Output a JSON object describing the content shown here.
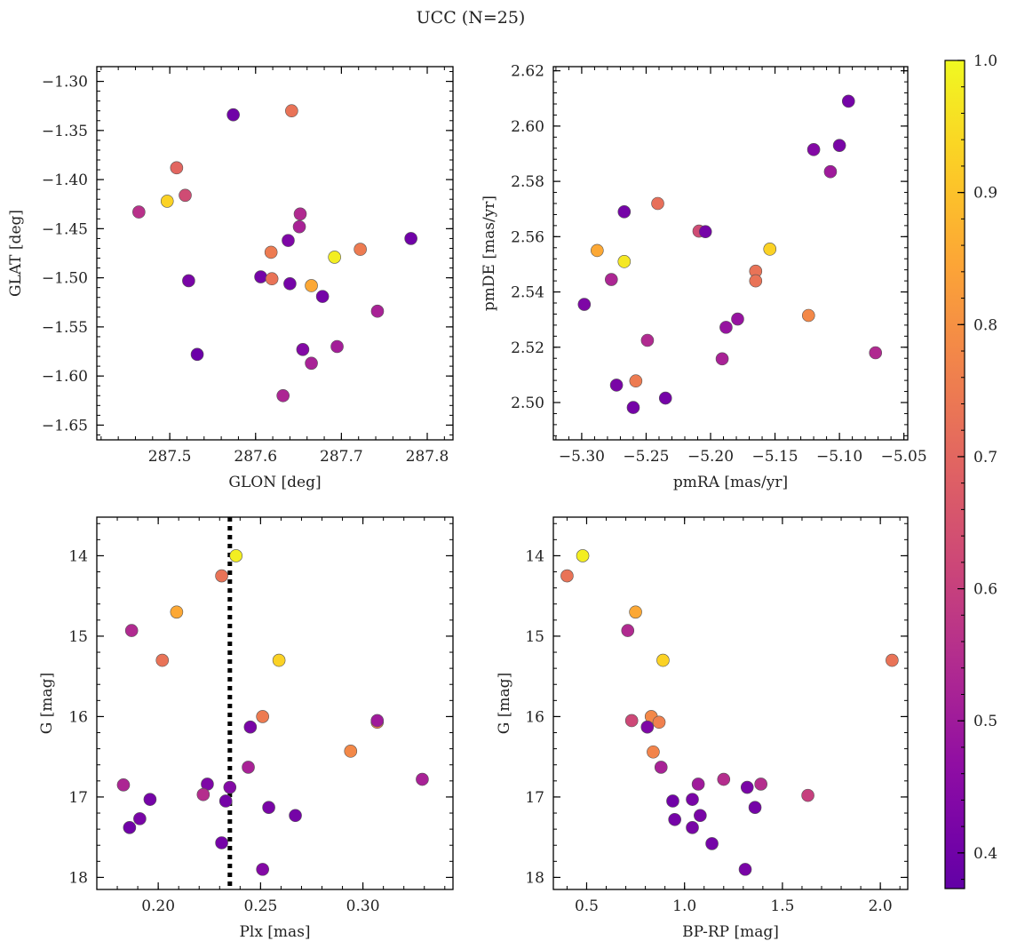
{
  "figure": {
    "title": "UCC (N=25)"
  },
  "colors": {
    "background": "#ffffff",
    "axes": "#000000",
    "marker_edge": "#555555",
    "vline": "#000000"
  },
  "colorbar": {
    "colormap": "plasma",
    "range": [
      0.373,
      1.0
    ],
    "ticks": [
      0.4,
      0.5,
      0.6,
      0.7,
      0.8,
      0.9,
      1.0
    ],
    "tick_labels": [
      "0.4",
      "0.5",
      "0.6",
      "0.7",
      "0.8",
      "0.9",
      "1.0"
    ]
  },
  "chart_data": [
    {
      "id": "glon-glat",
      "type": "scatter",
      "title": "",
      "xlabel": "GLON [deg]",
      "ylabel": "GLAT [deg]",
      "xlim": [
        287.415,
        287.83
      ],
      "ylim": [
        -1.665,
        -1.285
      ],
      "xticks": [
        287.5,
        287.6,
        287.7,
        287.8
      ],
      "xtick_labels": [
        "287.5",
        "287.6",
        "287.7",
        "287.8"
      ],
      "yticks": [
        -1.65,
        -1.6,
        -1.55,
        -1.5,
        -1.45,
        -1.4,
        -1.35,
        -1.3
      ],
      "ytick_labels": [
        "−1.65",
        "−1.60",
        "−1.55",
        "−1.50",
        "−1.45",
        "−1.40",
        "−1.35",
        "−1.30"
      ],
      "yinvert": false,
      "color_values": [
        0.4,
        0.73,
        0.7,
        0.63,
        0.93,
        0.56,
        0.42,
        0.39,
        0.54,
        0.52,
        0.43,
        0.41,
        0.75,
        0.73,
        0.85,
        0.41,
        0.98,
        0.41,
        0.75,
        0.52,
        0.44,
        0.51,
        0.52,
        0.53,
        0.4
      ],
      "x": [
        287.574,
        287.642,
        287.508,
        287.518,
        287.497,
        287.464,
        287.522,
        287.532,
        287.652,
        287.651,
        287.638,
        287.606,
        287.618,
        287.619,
        287.665,
        287.64,
        287.692,
        287.678,
        287.722,
        287.742,
        287.655,
        287.695,
        287.665,
        287.632,
        287.781
      ],
      "y": [
        -1.334,
        -1.33,
        -1.388,
        -1.416,
        -1.422,
        -1.433,
        -1.503,
        -1.578,
        -1.435,
        -1.448,
        -1.462,
        -1.499,
        -1.474,
        -1.501,
        -1.508,
        -1.506,
        -1.479,
        -1.519,
        -1.471,
        -1.534,
        -1.573,
        -1.57,
        -1.587,
        -1.62,
        -1.46
      ]
    },
    {
      "id": "pmra-pmde",
      "type": "scatter",
      "title": "",
      "xlabel": "pmRA [mas/yr]",
      "ylabel": "pmDE [mas/yr]",
      "xlim": [
        -5.322,
        -5.047
      ],
      "ylim": [
        2.4865,
        2.6215
      ],
      "xticks": [
        -5.3,
        -5.25,
        -5.2,
        -5.15,
        -5.1,
        -5.05
      ],
      "xtick_labels": [
        "−5.30",
        "−5.25",
        "−5.20",
        "−5.15",
        "−5.10",
        "−5.05"
      ],
      "yticks": [
        2.5,
        2.52,
        2.54,
        2.56,
        2.58,
        2.6,
        2.62
      ],
      "ytick_labels": [
        "2.50",
        "2.52",
        "2.54",
        "2.56",
        "2.58",
        "2.60",
        "2.62"
      ],
      "yinvert": false,
      "color_values": [
        0.41,
        0.44,
        0.42,
        0.5,
        0.43,
        0.54,
        0.41,
        0.72,
        0.63,
        0.41,
        0.85,
        0.97,
        0.53,
        0.73,
        0.73,
        0.93,
        0.78,
        0.54,
        0.48,
        0.48,
        0.42,
        0.52,
        0.41,
        0.75,
        0.41
      ],
      "x": [
        -5.093,
        -5.12,
        -5.1,
        -5.107,
        -5.298,
        -5.072,
        -5.267,
        -5.241,
        -5.209,
        -5.204,
        -5.288,
        -5.267,
        -5.277,
        -5.165,
        -5.165,
        -5.154,
        -5.124,
        -5.249,
        -5.179,
        -5.188,
        -5.273,
        -5.191,
        -5.235,
        -5.258,
        -5.26
      ],
      "y": [
        2.609,
        2.5915,
        2.593,
        2.5835,
        2.5355,
        2.518,
        2.569,
        2.572,
        2.562,
        2.5618,
        2.555,
        2.551,
        2.5445,
        2.5475,
        2.544,
        2.5555,
        2.5315,
        2.5225,
        2.5302,
        2.5272,
        2.5063,
        2.5158,
        2.5016,
        2.5078,
        2.4982
      ]
    },
    {
      "id": "plx-g",
      "type": "scatter",
      "title": "",
      "xlabel": "Plx [mas]",
      "ylabel": "G [mag]",
      "xlim": [
        0.17,
        0.344
      ],
      "ylim": [
        13.52,
        18.15
      ],
      "xticks": [
        0.2,
        0.25,
        0.3
      ],
      "xtick_labels": [
        "0.20",
        "0.25",
        "0.30"
      ],
      "yticks": [
        14,
        15,
        16,
        17,
        18
      ],
      "ytick_labels": [
        "14",
        "15",
        "16",
        "17",
        "18"
      ],
      "yinvert": true,
      "vline": {
        "x": 0.235,
        "style": "dotted"
      },
      "color_values": [
        0.98,
        0.73,
        0.85,
        0.54,
        0.73,
        0.93,
        0.75,
        0.42,
        0.52,
        0.78,
        0.52,
        0.53,
        0.41,
        0.43,
        0.55,
        0.44,
        0.41,
        0.4,
        0.42,
        0.42,
        0.41,
        0.41,
        0.44,
        0.76,
        0.5
      ],
      "x": [
        0.238,
        0.231,
        0.209,
        0.187,
        0.202,
        0.259,
        0.251,
        0.245,
        0.244,
        0.294,
        0.329,
        0.183,
        0.196,
        0.224,
        0.222,
        0.235,
        0.233,
        0.186,
        0.191,
        0.254,
        0.267,
        0.231,
        0.251,
        0.307,
        0.307
      ],
      "y": [
        14.0,
        14.25,
        14.7,
        14.93,
        15.3,
        15.3,
        16.0,
        16.13,
        16.63,
        16.43,
        16.78,
        16.85,
        17.03,
        16.84,
        16.97,
        16.88,
        17.05,
        17.38,
        17.27,
        17.13,
        17.23,
        17.57,
        17.9,
        16.07,
        16.05
      ]
    },
    {
      "id": "bprp-g",
      "type": "scatter",
      "title": "",
      "xlabel": "BP-RP [mag]",
      "ylabel": "G [mag]",
      "xlim": [
        0.33,
        2.14
      ],
      "ylim": [
        13.52,
        18.15
      ],
      "xticks": [
        0.5,
        1.0,
        1.5,
        2.0
      ],
      "xtick_labels": [
        "0.5",
        "1.0",
        "1.5",
        "2.0"
      ],
      "yticks": [
        14,
        15,
        16,
        17,
        18
      ],
      "ytick_labels": [
        "14",
        "15",
        "16",
        "17",
        "18"
      ],
      "yinvert": true,
      "color_values": [
        0.98,
        0.73,
        0.85,
        0.54,
        0.93,
        0.73,
        0.62,
        0.78,
        0.43,
        0.76,
        0.77,
        0.52,
        0.5,
        0.55,
        0.55,
        0.42,
        0.41,
        0.4,
        0.41,
        0.42,
        0.42,
        0.42,
        0.41,
        0.6,
        0.42
      ],
      "x": [
        0.48,
        0.4,
        0.75,
        0.71,
        0.89,
        2.06,
        0.73,
        0.83,
        0.81,
        0.87,
        0.84,
        0.88,
        1.07,
        1.2,
        1.39,
        1.32,
        1.36,
        0.94,
        0.95,
        1.04,
        1.08,
        1.04,
        1.14,
        1.63,
        1.31
      ],
      "y": [
        14.0,
        14.25,
        14.7,
        14.93,
        15.3,
        15.3,
        16.05,
        16.0,
        16.13,
        16.07,
        16.44,
        16.63,
        16.84,
        16.78,
        16.84,
        16.88,
        17.13,
        17.05,
        17.28,
        17.03,
        17.23,
        17.38,
        17.58,
        16.98,
        17.9
      ]
    }
  ]
}
